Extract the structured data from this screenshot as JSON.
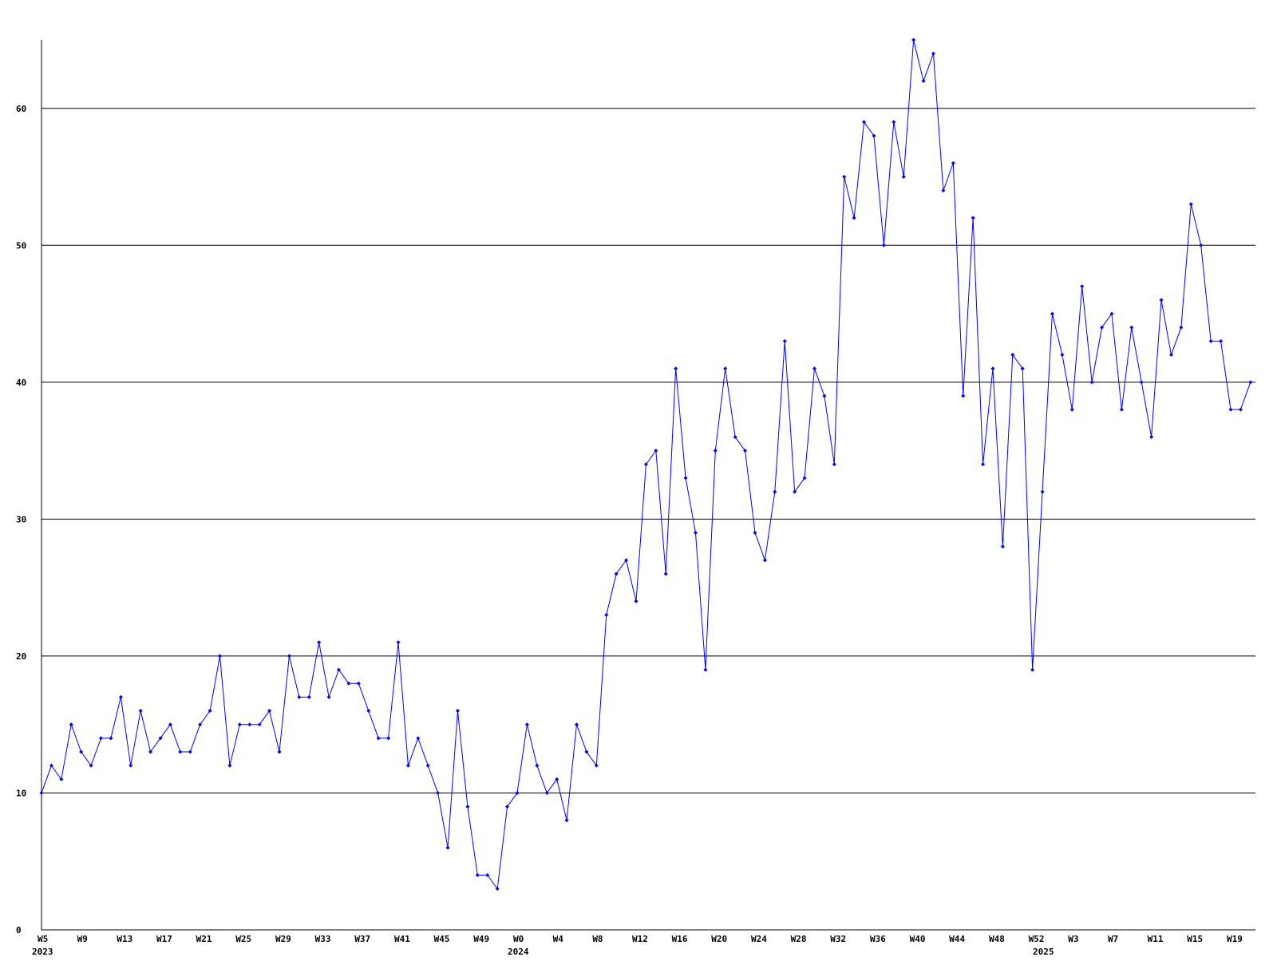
{
  "chart_data": {
    "type": "line",
    "categories": [
      "W5",
      null,
      null,
      null,
      "W9",
      null,
      null,
      null,
      "W13",
      null,
      null,
      null,
      "W17",
      null,
      null,
      null,
      "W21",
      null,
      null,
      null,
      "W25",
      null,
      null,
      null,
      "W29",
      null,
      null,
      null,
      "W33",
      null,
      null,
      null,
      "W37",
      null,
      null,
      null,
      "W41",
      null,
      null,
      null,
      "W45",
      null,
      null,
      null,
      "W49",
      null,
      null,
      null,
      "W0",
      null,
      null,
      null,
      "W4",
      null,
      null,
      null,
      "W8",
      null,
      null,
      null,
      "W12",
      null,
      null,
      null,
      "W16",
      null,
      null,
      null,
      "W20",
      null,
      null,
      null,
      "W24",
      null,
      null,
      null,
      "W28",
      null,
      null,
      null,
      "W32",
      null,
      null,
      null,
      "W36",
      null,
      null,
      null,
      "W40",
      null,
      null,
      null,
      "W44",
      null,
      null,
      null,
      "W48",
      null,
      null,
      null,
      "W52",
      null,
      null,
      null,
      "W3",
      null,
      null,
      null,
      "W7",
      null,
      null,
      null,
      "W11",
      null,
      null,
      null,
      "W15",
      null,
      null,
      null,
      "W19",
      null,
      null
    ],
    "years": [
      "2023",
      null,
      null,
      null,
      null,
      null,
      null,
      null,
      null,
      null,
      null,
      null,
      null,
      null,
      null,
      null,
      null,
      null,
      null,
      null,
      null,
      null,
      null,
      null,
      null,
      null,
      null,
      null,
      null,
      null,
      null,
      null,
      null,
      null,
      null,
      null,
      null,
      null,
      null,
      null,
      null,
      null,
      null,
      null,
      null,
      null,
      null,
      null,
      "2024",
      null,
      null,
      null,
      null,
      null,
      null,
      null,
      null,
      null,
      null,
      null,
      null,
      null,
      null,
      null,
      null,
      null,
      null,
      null,
      null,
      null,
      null,
      null,
      null,
      null,
      null,
      null,
      null,
      null,
      null,
      null,
      null,
      null,
      null,
      null,
      null,
      null,
      null,
      null,
      null,
      null,
      null,
      null,
      null,
      null,
      null,
      null,
      null,
      null,
      null,
      null,
      null,
      "2025",
      null,
      null,
      null,
      null,
      null,
      null,
      null,
      null,
      null,
      null,
      null,
      null,
      null,
      null,
      null,
      null,
      null,
      null,
      null,
      null
    ],
    "values": [
      10,
      12,
      11,
      15,
      13,
      12,
      14,
      14,
      17,
      12,
      16,
      13,
      14,
      15,
      13,
      13,
      15,
      16,
      20,
      12,
      15,
      15,
      15,
      16,
      13,
      20,
      17,
      17,
      21,
      17,
      19,
      18,
      18,
      16,
      14,
      14,
      21,
      12,
      14,
      12,
      10,
      6,
      16,
      9,
      4,
      4,
      3,
      9,
      10,
      15,
      12,
      10,
      11,
      8,
      15,
      13,
      12,
      23,
      26,
      27,
      24,
      34,
      35,
      26,
      41,
      33,
      29,
      19,
      35,
      41,
      36,
      35,
      29,
      27,
      32,
      43,
      32,
      33,
      41,
      39,
      34,
      55,
      52,
      59,
      58,
      50,
      59,
      55,
      65,
      62,
      64,
      54,
      56,
      39,
      52,
      34,
      41,
      28,
      42,
      41,
      19,
      32,
      45,
      42,
      38,
      47,
      40,
      44,
      45,
      38,
      44,
      40,
      36,
      46,
      42,
      44,
      53,
      50,
      43,
      43,
      38,
      38,
      40
    ],
    "color": "#0000ff",
    "ylim": [
      0,
      65
    ],
    "yticks": [
      0,
      10,
      20,
      30,
      40,
      50,
      60
    ],
    "grid": true
  }
}
